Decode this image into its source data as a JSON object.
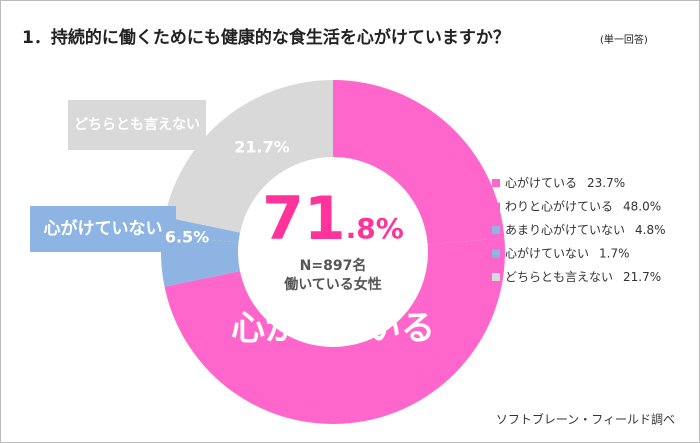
{
  "chart_data": {
    "type": "donut",
    "title": "1．持続的に働くためにも健康的な食生活を心がけていますか？",
    "subtitle": "(単一回答)",
    "categories": [
      "心がけている",
      "わりと心がけている",
      "あまり心がけていない",
      "心がけていない",
      "どちらとも言えない"
    ],
    "values": [
      23.7,
      48.0,
      4.8,
      1.7,
      21.7
    ],
    "value_labels": [
      "23.7%",
      "48.0%",
      "4.8%",
      "1.7%",
      "21.7%"
    ],
    "colors": [
      "#ff66cc",
      "#ff66cc",
      "#8eb4e3",
      "#8eb4e3",
      "#d9d9d9"
    ],
    "legend": "right",
    "group_labels": [
      {
        "text": "心がけている",
        "color": "#ff66cc"
      },
      {
        "text": "心がけていない",
        "value_label": "6.5%",
        "color": "#8eb4e3"
      },
      {
        "text": "どちらとも言えない",
        "value_label": "21.7%",
        "color": "#d9d9d9"
      }
    ],
    "center": {
      "big": "71",
      "small": ".8%",
      "sample": "N=897名",
      "population": "働いている女性",
      "color": "#ff3399"
    },
    "source": "ソフトブレーン・フィールド調べ"
  }
}
